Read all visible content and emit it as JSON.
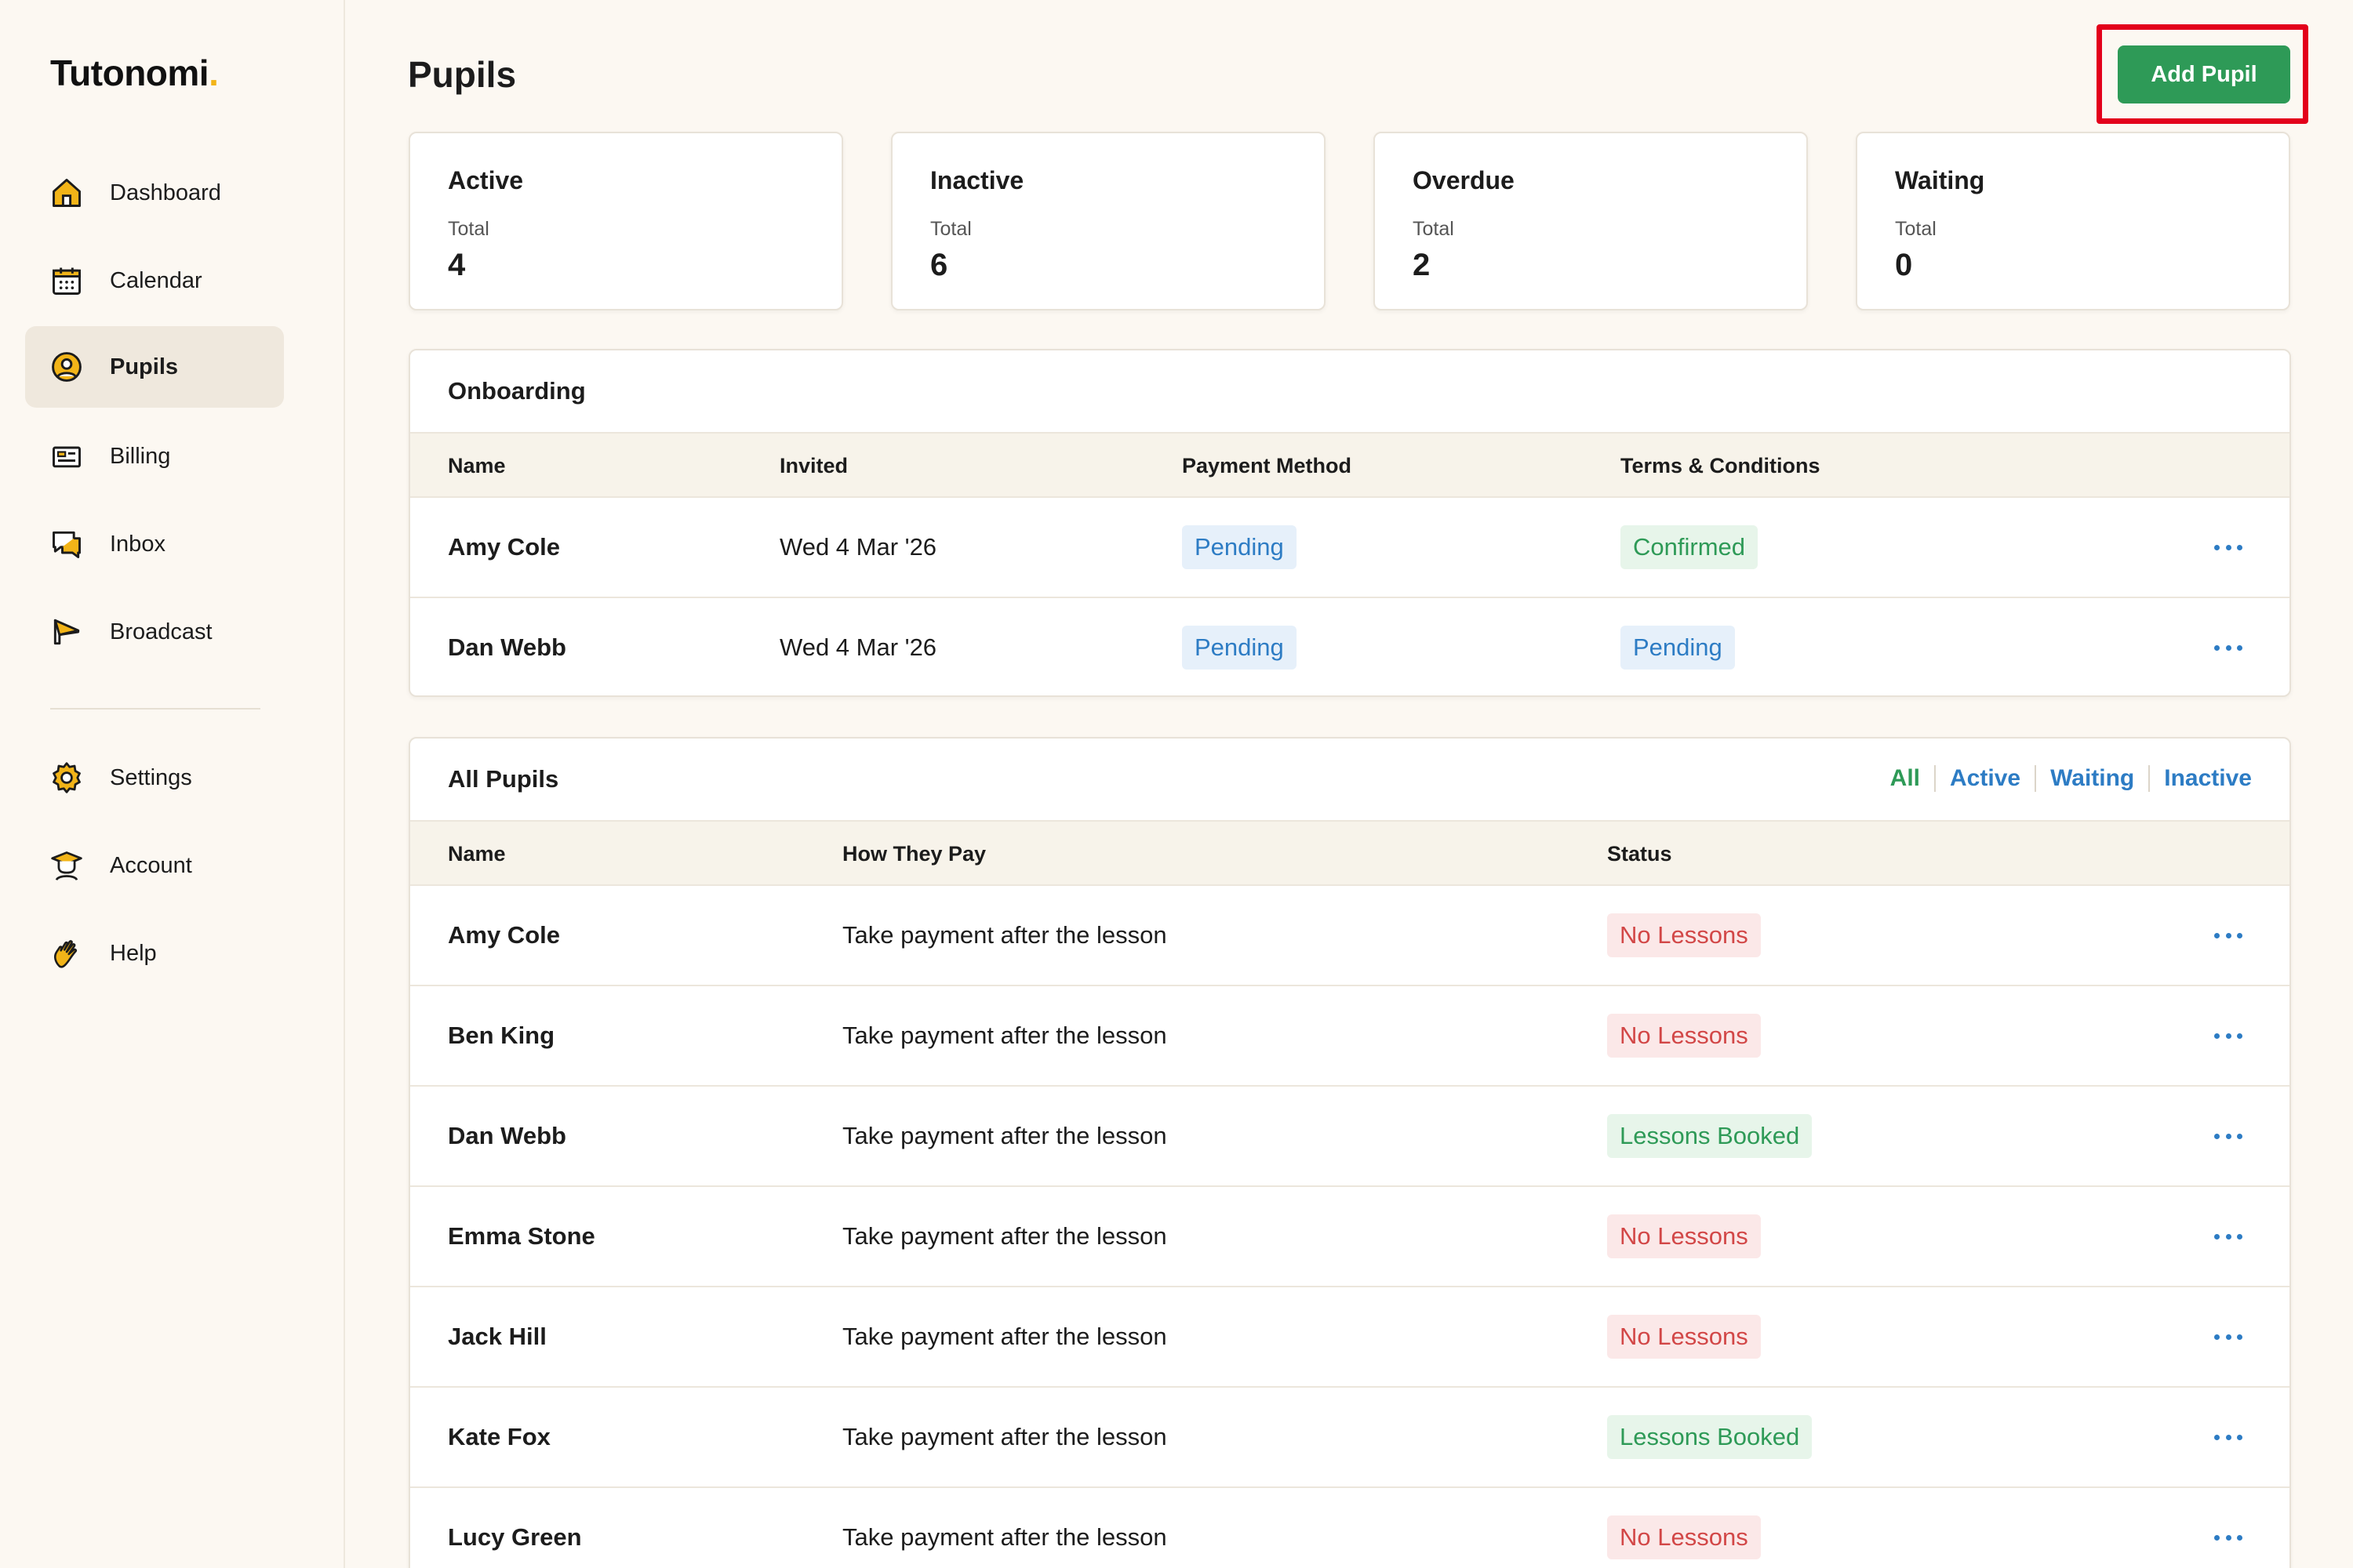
{
  "app": {
    "logo_text": "Tutonomi",
    "logo_dot": ".",
    "brand_color": "#2e9a57",
    "accent_color": "#f2b418"
  },
  "sidebar": {
    "items": [
      {
        "label": "Dashboard",
        "icon": "home-icon",
        "active": false
      },
      {
        "label": "Calendar",
        "icon": "calendar-icon",
        "active": false
      },
      {
        "label": "Pupils",
        "icon": "user-circle-icon",
        "active": true
      },
      {
        "label": "Billing",
        "icon": "billing-icon",
        "active": false
      },
      {
        "label": "Inbox",
        "icon": "chat-icon",
        "active": false
      },
      {
        "label": "Broadcast",
        "icon": "megaphone-icon",
        "active": false
      }
    ],
    "secondary_items": [
      {
        "label": "Settings",
        "icon": "gear-icon"
      },
      {
        "label": "Account",
        "icon": "graduate-icon"
      },
      {
        "label": "Help",
        "icon": "waving-hand-icon"
      }
    ]
  },
  "header": {
    "title": "Pupils",
    "add_button_label": "Add Pupil"
  },
  "stats": [
    {
      "title": "Active",
      "total_label": "Total",
      "value": "4"
    },
    {
      "title": "Inactive",
      "total_label": "Total",
      "value": "6"
    },
    {
      "title": "Overdue",
      "total_label": "Total",
      "value": "2"
    },
    {
      "title": "Waiting",
      "total_label": "Total",
      "value": "0"
    }
  ],
  "onboarding": {
    "title": "Onboarding",
    "columns": [
      "Name",
      "Invited",
      "Payment Method",
      "Terms & Conditions"
    ],
    "rows": [
      {
        "name": "Amy Cole",
        "invited": "Wed 4 Mar '26",
        "payment_method": "Pending",
        "payment_status": "blue",
        "terms": "Confirmed",
        "terms_status": "green"
      },
      {
        "name": "Dan Webb",
        "invited": "Wed 4 Mar '26",
        "payment_method": "Pending",
        "payment_status": "blue",
        "terms": "Pending",
        "terms_status": "blue"
      }
    ]
  },
  "all_pupils": {
    "title": "All Pupils",
    "filters": [
      {
        "label": "All",
        "active": true
      },
      {
        "label": "Active",
        "active": false
      },
      {
        "label": "Waiting",
        "active": false
      },
      {
        "label": "Inactive",
        "active": false
      }
    ],
    "columns": [
      "Name",
      "How They Pay",
      "Status"
    ],
    "rows": [
      {
        "name": "Amy Cole",
        "pay": "Take payment after the lesson",
        "status": "No Lessons",
        "status_color": "red"
      },
      {
        "name": "Ben King",
        "pay": "Take payment after the lesson",
        "status": "No Lessons",
        "status_color": "red"
      },
      {
        "name": "Dan Webb",
        "pay": "Take payment after the lesson",
        "status": "Lessons Booked",
        "status_color": "green"
      },
      {
        "name": "Emma Stone",
        "pay": "Take payment after the lesson",
        "status": "No Lessons",
        "status_color": "red"
      },
      {
        "name": "Jack Hill",
        "pay": "Take payment after the lesson",
        "status": "No Lessons",
        "status_color": "red"
      },
      {
        "name": "Kate Fox",
        "pay": "Take payment after the lesson",
        "status": "Lessons Booked",
        "status_color": "green"
      },
      {
        "name": "Lucy Green",
        "pay": "Take payment after the lesson",
        "status": "No Lessons",
        "status_color": "red"
      }
    ]
  }
}
